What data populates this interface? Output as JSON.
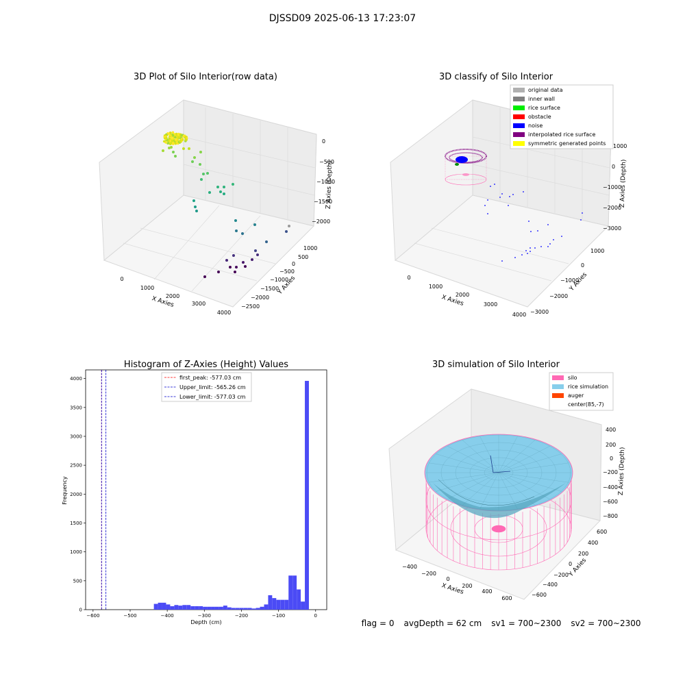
{
  "figure_title": "DJSSD09 2025-06-13 17:23:07",
  "status": {
    "flag": "flag = 0",
    "avg_depth": "avgDepth = 62 cm",
    "sv1": "sv1 = 700~2300",
    "sv2": "sv2 = 700~2300"
  },
  "colors": {
    "histogram_bar": "#4b4bf5",
    "first_peak": "#ff0000",
    "limits": "#0000cc",
    "silo": "#ff69b4",
    "rice_simulation": "#87ceeb",
    "auger": "#ff4500",
    "original_data": "#b0b0b0",
    "inner_wall": "#808080",
    "rice_surface": "#00ee00",
    "obstacle": "#ff0000",
    "noise": "#0000ff",
    "interpolated": "#800080",
    "symmetric": "#ffff00"
  },
  "chart_data": [
    {
      "type": "scatter",
      "title": "3D Plot of Silo Interior(row data)",
      "xlabel": "X Axies",
      "ylabel": "Y Axies",
      "zlabel": "Z Axies (Depth)",
      "x_ticks": [
        "0",
        "1000",
        "2000",
        "3000",
        "4000"
      ],
      "y_ticks": [
        "1000",
        "500",
        "0",
        "−500",
        "−1000",
        "−1500",
        "−2000",
        "−2500"
      ],
      "z_ticks": [
        "0",
        "−500",
        "−1000",
        "−1500",
        "−2000"
      ],
      "colormap": "viridis (by depth)"
    },
    {
      "type": "scatter",
      "title": "3D classify of Silo Interior",
      "xlabel": "X Axies",
      "ylabel": "Y Axies",
      "zlabel": "Z Axies (Depth)",
      "x_ticks": [
        "0",
        "1000",
        "2000",
        "3000",
        "4000"
      ],
      "y_ticks": [
        "1000",
        "0",
        "−1000",
        "−2000",
        "−3000"
      ],
      "z_ticks": [
        "1000",
        "0",
        "−1000",
        "−2000",
        "−3000"
      ],
      "legend": [
        "original data",
        "inner wall",
        "rice surface",
        "obstacle",
        "noise",
        "interpolated rice surface",
        "symmetric generated points"
      ],
      "legend_position": "top-right"
    },
    {
      "type": "bar",
      "title": "Histogram of Z-Axies (Height) Values",
      "xlabel": "Depth (cm)",
      "ylabel": "Frequency",
      "xlim": [
        -620,
        30
      ],
      "ylim": [
        0,
        4150
      ],
      "x_ticks": [
        "−600",
        "−500",
        "−400",
        "−300",
        "−200",
        "−100",
        "0"
      ],
      "y_ticks": [
        "0",
        "500",
        "1000",
        "1500",
        "2000",
        "2500",
        "3000",
        "3500",
        "4000"
      ],
      "bin_width": 10.9,
      "bins": [
        {
          "x": -436,
          "v": 100
        },
        {
          "x": -425,
          "v": 120
        },
        {
          "x": -414,
          "v": 120
        },
        {
          "x": -403,
          "v": 90
        },
        {
          "x": -392,
          "v": 60
        },
        {
          "x": -381,
          "v": 80
        },
        {
          "x": -370,
          "v": 70
        },
        {
          "x": -359,
          "v": 80
        },
        {
          "x": -348,
          "v": 80
        },
        {
          "x": -337,
          "v": 60
        },
        {
          "x": -326,
          "v": 60
        },
        {
          "x": -315,
          "v": 60
        },
        {
          "x": -304,
          "v": 50
        },
        {
          "x": -293,
          "v": 50
        },
        {
          "x": -282,
          "v": 50
        },
        {
          "x": -271,
          "v": 50
        },
        {
          "x": -260,
          "v": 50
        },
        {
          "x": -249,
          "v": 70
        },
        {
          "x": -238,
          "v": 40
        },
        {
          "x": -227,
          "v": 30
        },
        {
          "x": -216,
          "v": 30
        },
        {
          "x": -205,
          "v": 30
        },
        {
          "x": -194,
          "v": 30
        },
        {
          "x": -183,
          "v": 30
        },
        {
          "x": -172,
          "v": 20
        },
        {
          "x": -161,
          "v": 30
        },
        {
          "x": -150,
          "v": 50
        },
        {
          "x": -139,
          "v": 90
        },
        {
          "x": -128,
          "v": 250
        },
        {
          "x": -117,
          "v": 200
        },
        {
          "x": -106,
          "v": 170
        },
        {
          "x": -95,
          "v": 170
        },
        {
          "x": -84,
          "v": 170
        },
        {
          "x": -73,
          "v": 590
        },
        {
          "x": -62,
          "v": 590
        },
        {
          "x": -51,
          "v": 350
        },
        {
          "x": -40,
          "v": 140
        },
        {
          "x": -29,
          "v": 3960
        }
      ],
      "lines": [
        {
          "label": "first_peak: -577.03 cm",
          "x": -577.03,
          "color": "#ff0000"
        },
        {
          "label": "Upper_limit: -565.26 cm",
          "x": -565.26,
          "color": "#0000cc"
        },
        {
          "label": "Lower_limit: -577.03 cm",
          "x": -577.03,
          "color": "#0000cc"
        }
      ],
      "legend_position": "top-center"
    },
    {
      "type": "surface",
      "title": "3D simulation of Silo Interior",
      "xlabel": "X Axies",
      "ylabel": "Y Axies",
      "zlabel": "Z Axies (Depth)",
      "x_ticks": [
        "−400",
        "−200",
        "0",
        "200",
        "400",
        "600"
      ],
      "y_ticks": [
        "600",
        "400",
        "200",
        "0",
        "−200",
        "−400",
        "−600"
      ],
      "z_ticks": [
        "400",
        "200",
        "0",
        "−200",
        "−400",
        "−600",
        "−800"
      ],
      "legend": [
        "silo",
        "rice simulation",
        "auger",
        "center(85,-7)"
      ],
      "legend_position": "top-right"
    }
  ]
}
